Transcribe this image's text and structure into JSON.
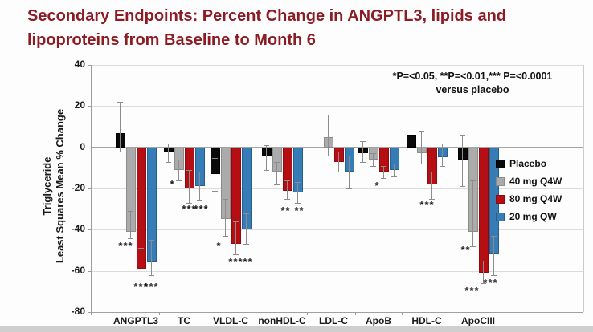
{
  "title": {
    "line1": "Secondary Endpoints: Percent Change in ANGPTL3, lipids and",
    "line2": "lipoproteins from Baseline to Month 6",
    "color": "#8c1c24"
  },
  "pvalue_note": {
    "line1": "*P=<0.05, **P=<0.01,*** P=<0.0001",
    "line2": "versus placebo"
  },
  "chart_data": {
    "type": "bar",
    "categories": [
      "ANGPTL3",
      "TC",
      "VLDL-C",
      "nonHDL-C",
      "LDL-C",
      "ApoB",
      "HDL-C",
      "ApoCIII"
    ],
    "series": [
      {
        "name": "Placebo",
        "color": "#0a0a0a",
        "border": "#000000",
        "values": [
          7,
          -2,
          -13,
          -4,
          0,
          -3,
          6,
          -6
        ],
        "err_top": [
          22,
          2,
          -5,
          1,
          0,
          3,
          12,
          6
        ],
        "err_bot": [
          -2,
          -7,
          -21,
          -11,
          0,
          -7,
          -2,
          -19
        ]
      },
      {
        "name": "40 mg Q4W",
        "color": "#ababab",
        "border": "#8c8c8c",
        "values": [
          -41,
          -11,
          -35,
          -12,
          5,
          -6,
          -3,
          -41
        ],
        "err_top": [
          -31,
          -6,
          -25,
          -7,
          16,
          -3,
          8,
          -16
        ],
        "err_bot": [
          -44,
          -16,
          -43,
          -18,
          -4,
          -9,
          -8,
          -48
        ]
      },
      {
        "name": "80 mg Q4W",
        "color": "#b50e13",
        "border": "#8f0a0e",
        "values": [
          -59,
          -20,
          -47,
          -21,
          -7,
          -12,
          -18,
          -61
        ],
        "err_top": [
          -49,
          -11,
          -36,
          -16,
          -2,
          -9,
          -12,
          -55
        ],
        "err_bot": [
          -63,
          -27,
          -52,
          -25,
          -12,
          -15,
          -25,
          -66
        ]
      },
      {
        "name": "20 mg QW",
        "color": "#367cb7",
        "border": "#275e8c",
        "values": [
          -56,
          -19,
          -40,
          -22,
          -12,
          -11,
          -5,
          -52
        ],
        "err_top": [
          -45,
          -12,
          -32,
          -17,
          -4,
          -8,
          2,
          -43
        ],
        "err_bot": [
          -62,
          -26,
          -47,
          -27,
          -20,
          -14,
          -9,
          -62
        ]
      }
    ],
    "significance": [
      {
        "category": "ANGPTL3",
        "series": "40 mg Q4W",
        "text": "***",
        "level": -48,
        "dx": -6
      },
      {
        "category": "ANGPTL3",
        "series": "80 mg Q4W",
        "text": "***",
        "level": -68,
        "dx": 0
      },
      {
        "category": "ANGPTL3",
        "series": "20 mg QW",
        "text": "***",
        "level": -68,
        "dx": 0
      },
      {
        "category": "TC",
        "series": "40 mg Q4W",
        "text": "*",
        "level": -18,
        "dx": -8
      },
      {
        "category": "TC",
        "series": "80 mg Q4W",
        "text": "***",
        "level": -30,
        "dx": 0
      },
      {
        "category": "TC",
        "series": "20 mg QW",
        "text": "***",
        "level": -30,
        "dx": 2
      },
      {
        "category": "VLDL-C",
        "series": "40 mg Q4W",
        "text": "*",
        "level": -48,
        "dx": -8
      },
      {
        "category": "VLDL-C",
        "series": "80 mg Q4W",
        "text": "***",
        "level": -56,
        "dx": 0
      },
      {
        "category": "VLDL-C",
        "series": "20 mg QW",
        "text": "**",
        "level": -56,
        "dx": 2
      },
      {
        "category": "nonHDL-C",
        "series": "80 mg Q4W",
        "text": "**",
        "level": -31,
        "dx": -2
      },
      {
        "category": "nonHDL-C",
        "series": "20 mg QW",
        "text": "**",
        "level": -31,
        "dx": 2
      },
      {
        "category": "ApoB",
        "series": "80 mg Q4W",
        "text": "*",
        "level": -19,
        "dx": -8
      },
      {
        "category": "HDL-C",
        "series": "80 mg Q4W",
        "text": "***",
        "level": -28,
        "dx": -6
      },
      {
        "category": "ApoCIII",
        "series": "40 mg Q4W",
        "text": "**",
        "level": -50,
        "dx": -9
      },
      {
        "category": "ApoCIII",
        "series": "80 mg Q4W",
        "text": "***",
        "level": -70,
        "dx": -14
      },
      {
        "category": "ApoCIII",
        "series": "20 mg QW",
        "text": "***",
        "level": -66,
        "dx": -4
      }
    ],
    "ylabel_line1": "Triglyceride",
    "ylabel_line2": "Least Squares Mean % Change",
    "yticks": [
      40,
      20,
      0,
      -20,
      -40,
      -60,
      -80
    ],
    "ylim": [
      -80,
      40
    ],
    "grid": true,
    "legend_position": "right"
  }
}
